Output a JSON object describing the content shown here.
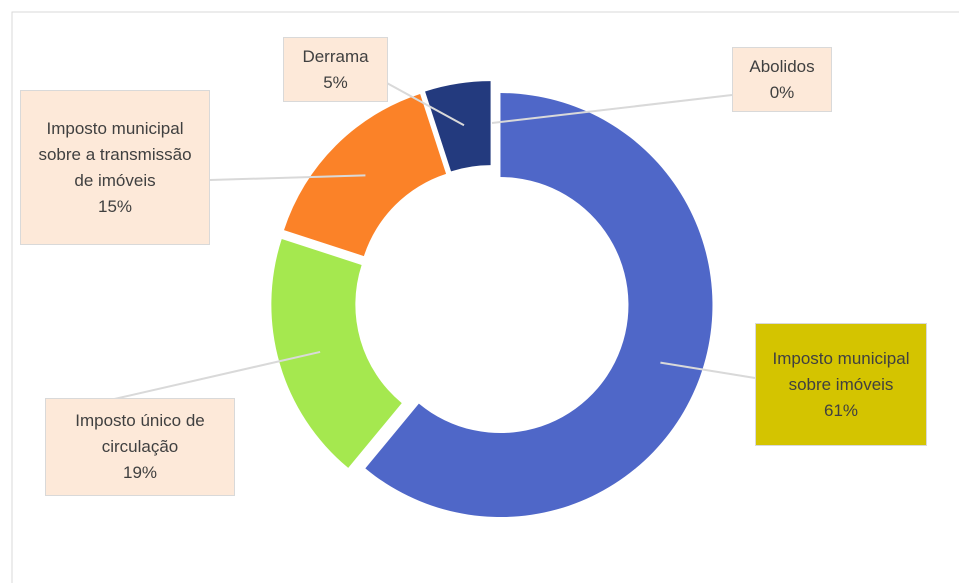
{
  "chart_data": {
    "type": "donut",
    "categories": [
      "Imposto municipal sobre imóveis",
      "Imposto único de circulação",
      "Imposto municipal sobre a transmissão de imóveis",
      "Derrama",
      "Abolidos"
    ],
    "values": [
      61,
      19,
      15,
      5,
      0
    ],
    "value_labels": [
      "61%",
      "19%",
      "15%",
      "5%",
      "0%"
    ],
    "colors": [
      "#4f67c8",
      "#a5e84f",
      "#fb8228",
      "#233a7e",
      "#7f7f7f"
    ],
    "label_colors": [
      "#d4c400",
      "#fde9d9",
      "#fde9d9",
      "#fde9d9",
      "#fde9d9"
    ]
  }
}
